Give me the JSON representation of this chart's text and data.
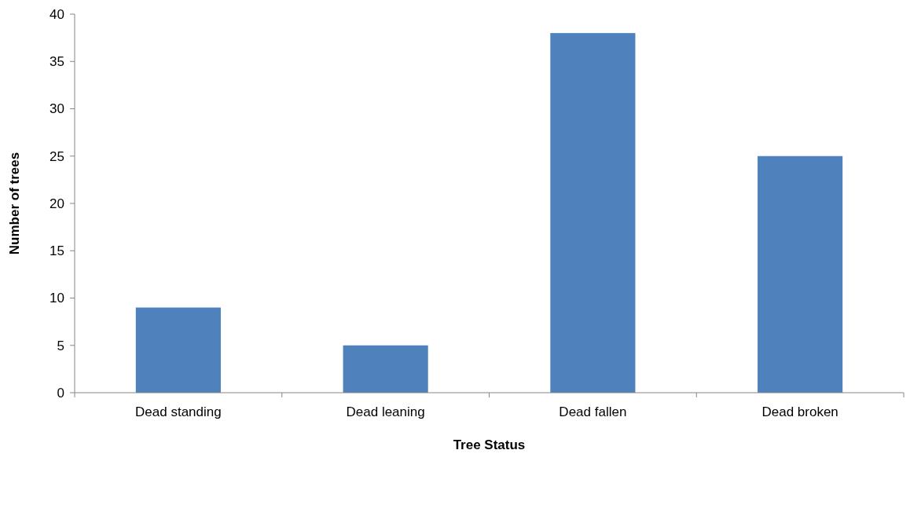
{
  "chart_data": {
    "type": "bar",
    "xlabel": "Tree Status",
    "ylabel": "Number of trees",
    "categories": [
      "Dead standing",
      "Dead leaning",
      "Dead fallen",
      "Dead broken"
    ],
    "values": [
      9,
      5,
      38,
      25
    ],
    "color": "#4f81bd",
    "ylim": [
      0,
      40
    ],
    "yticks": [
      0,
      5,
      10,
      15,
      20,
      25,
      30,
      35,
      40
    ],
    "grid": false
  }
}
